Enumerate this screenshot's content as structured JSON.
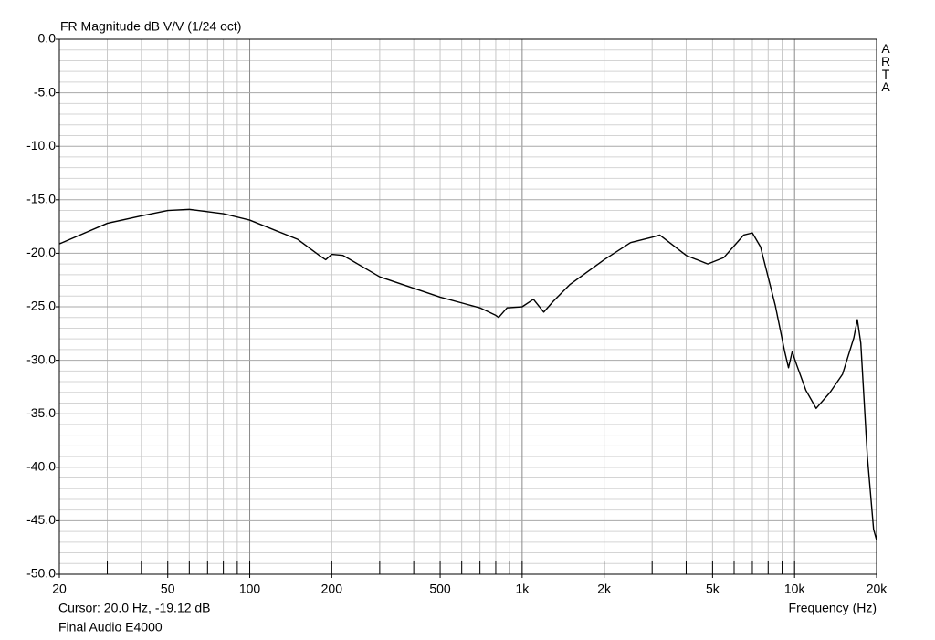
{
  "chart_data": {
    "type": "line",
    "title": "FR Magnitude dB V/V (1/24 oct)",
    "watermark": "ARTA",
    "cursor_text": "Cursor: 20.0 Hz, -19.12 dB",
    "x_label": "Frequency (Hz)",
    "device": "Final Audio E4000",
    "x_scale": "log",
    "color": "#000000",
    "x": [
      20,
      30,
      40,
      50,
      60,
      80,
      100,
      150,
      180,
      190,
      200,
      220,
      300,
      500,
      700,
      800,
      820,
      880,
      1000,
      1100,
      1200,
      1300,
      1500,
      2000,
      2500,
      3000,
      3200,
      4000,
      4800,
      5500,
      6500,
      7000,
      7500,
      8500,
      9200,
      9500,
      9800,
      10200,
      11000,
      12000,
      13500,
      15000,
      16500,
      17000,
      17500,
      18500,
      19500,
      20000
    ],
    "values": [
      -19.12,
      -17.2,
      -16.5,
      -16.0,
      -15.9,
      -16.3,
      -16.9,
      -18.7,
      -20.2,
      -20.6,
      -20.1,
      -20.2,
      -22.2,
      -24.1,
      -25.1,
      -25.8,
      -26.0,
      -25.1,
      -25.0,
      -24.3,
      -25.5,
      -24.5,
      -22.9,
      -20.6,
      -19.0,
      -18.5,
      -18.3,
      -20.2,
      -21.0,
      -20.4,
      -18.3,
      -18.1,
      -19.4,
      -24.9,
      -29.2,
      -30.7,
      -29.2,
      -30.5,
      -32.8,
      -34.5,
      -33.0,
      -31.3,
      -27.9,
      -26.2,
      -28.4,
      -39.0,
      -45.8,
      -46.8
    ],
    "xlim": [
      20,
      20000
    ],
    "ylim": [
      -50,
      0
    ],
    "xticks": [
      20,
      50,
      100,
      200,
      500,
      {
        "value": 1000,
        "label": "1k"
      },
      {
        "value": 2000,
        "label": "2k"
      },
      {
        "value": 5000,
        "label": "5k"
      },
      {
        "value": 10000,
        "label": "10k"
      },
      {
        "value": 20000,
        "label": "20k"
      }
    ],
    "yticks": [
      {
        "value": 0,
        "label": "0.0"
      },
      {
        "value": -5,
        "label": "-5.0"
      },
      {
        "value": -10,
        "label": "-10.0"
      },
      {
        "value": -15,
        "label": "-15.0"
      },
      {
        "value": -20,
        "label": "-20.0"
      },
      {
        "value": -25,
        "label": "-25.0"
      },
      {
        "value": -30,
        "label": "-30.0"
      },
      {
        "value": -35,
        "label": "-35.0"
      },
      {
        "value": -40,
        "label": "-40.0"
      },
      {
        "value": -45,
        "label": "-45.0"
      },
      {
        "value": -50,
        "label": "-50.0"
      }
    ],
    "xgrid": [
      30,
      40,
      50,
      60,
      70,
      80,
      90,
      100,
      200,
      300,
      400,
      500,
      600,
      700,
      800,
      900,
      1000,
      2000,
      3000,
      4000,
      5000,
      6000,
      7000,
      8000,
      9000,
      10000
    ],
    "ygrid": [
      -1,
      -2,
      -3,
      -4,
      -6,
      -7,
      -8,
      -9,
      -11,
      -12,
      -13,
      -14,
      -16,
      -17,
      -18,
      -19,
      -21,
      -22,
      -23,
      -24,
      -26,
      -27,
      -28,
      -29,
      -31,
      -32,
      -33,
      -34,
      -36,
      -37,
      -38,
      -39,
      -41,
      -42,
      -43,
      -44,
      -46,
      -47,
      -48,
      -49
    ],
    "grid": true
  }
}
